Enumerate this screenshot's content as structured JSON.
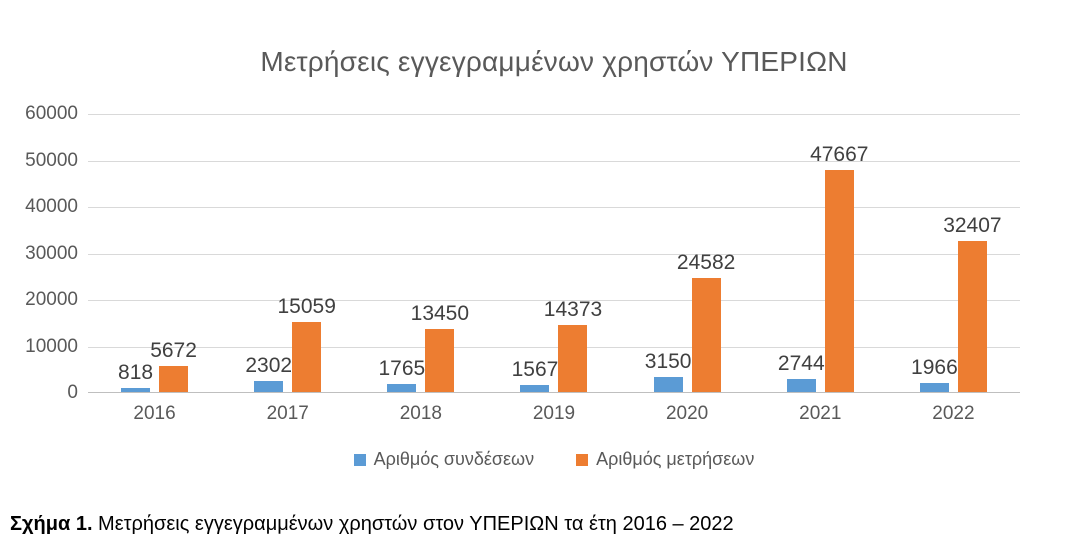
{
  "chart_data": {
    "type": "bar",
    "title": "Μετρήσεις εγγεγραμμένων χρηστών ΥΠΕΡΙΩΝ",
    "categories": [
      "2016",
      "2017",
      "2018",
      "2019",
      "2020",
      "2021",
      "2022"
    ],
    "series": [
      {
        "name": "Αριθμός συνδέσεων",
        "color": "#5B9BD5",
        "values": [
          818,
          2302,
          1765,
          1567,
          3150,
          2744,
          1966
        ]
      },
      {
        "name": "Αριθμός μετρήσεων",
        "color": "#ED7D31",
        "values": [
          5672,
          15059,
          13450,
          14373,
          24582,
          47667,
          32407
        ]
      }
    ],
    "xlabel": "",
    "ylabel": "",
    "ylim": [
      0,
      60000
    ],
    "yticks": [
      0,
      10000,
      20000,
      30000,
      40000,
      50000,
      60000
    ],
    "grid": true,
    "legend_position": "bottom",
    "data_labels": true
  },
  "caption": {
    "prefix": "Σχήμα 1.",
    "text": " Μετρήσεις εγγεγραμμένων χρηστών στον ΥΠΕΡΙΩΝ τα έτη 2016 – 2022"
  },
  "colors": {
    "series_connections": "#5B9BD5",
    "series_measurements": "#ED7D31",
    "title_text": "#595959",
    "axis_text": "#595959",
    "data_label_text": "#404040",
    "gridline": "#d9d9d9",
    "axis_line": "#bfbfbf",
    "caption_text": "#000000",
    "background": "#ffffff"
  }
}
